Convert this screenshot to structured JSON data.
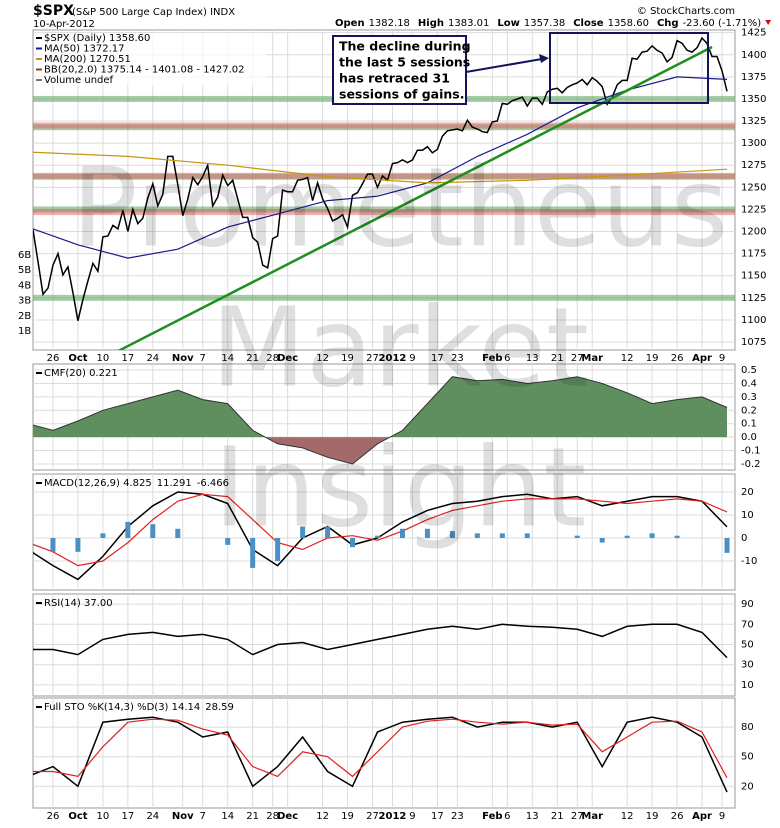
{
  "chart_data": [
    {
      "type": "line",
      "title": "$SPX",
      "subtitle": "(S&P 500 Large Cap Index) INDX",
      "date": "10-Apr-2012",
      "source": "© StockCharts.com",
      "quote": [
        {
          "label": "Open",
          "value": "1382.18"
        },
        {
          "label": "High",
          "value": "1383.01"
        },
        {
          "label": "Low",
          "value": "1357.38"
        },
        {
          "label": "Close",
          "value": "1358.60"
        },
        {
          "label": "Chg",
          "value": "-23.60 (-1.71%)"
        }
      ],
      "annotation": [
        "The decline during",
        "the last 5 sessions",
        "has retraced 31",
        "sessions of gains."
      ],
      "watermark": [
        "Prometheus",
        "Market",
        "Insight"
      ],
      "xlim": [
        -1,
        142
      ],
      "xticks": [
        {
          "value": 5,
          "label": "26"
        },
        {
          "value": 10,
          "label": "Oct"
        },
        {
          "value": 15,
          "label": "10"
        },
        {
          "value": 20,
          "label": "17"
        },
        {
          "value": 25,
          "label": "24"
        },
        {
          "value": 31,
          "label": "Nov"
        },
        {
          "value": 35,
          "label": "7"
        },
        {
          "value": 40,
          "label": "14"
        },
        {
          "value": 45,
          "label": "21"
        },
        {
          "value": 49,
          "label": "28"
        },
        {
          "value": 52,
          "label": "Dec"
        },
        {
          "value": 59,
          "label": "12"
        },
        {
          "value": 64,
          "label": "19"
        },
        {
          "value": 69,
          "label": "27"
        },
        {
          "value": 73,
          "label": "2012"
        },
        {
          "value": 77,
          "label": "9"
        },
        {
          "value": 82,
          "label": "17"
        },
        {
          "value": 86,
          "label": "23"
        },
        {
          "value": 93,
          "label": "Feb"
        },
        {
          "value": 96,
          "label": "6"
        },
        {
          "value": 101,
          "label": "13"
        },
        {
          "value": 106,
          "label": "21"
        },
        {
          "value": 110,
          "label": "27"
        },
        {
          "value": 113,
          "label": "Mar"
        },
        {
          "value": 120,
          "label": "12"
        },
        {
          "value": 125,
          "label": "19"
        },
        {
          "value": 130,
          "label": "26"
        },
        {
          "value": 135,
          "label": "Apr"
        },
        {
          "value": 139,
          "label": "9"
        }
      ],
      "ylim": [
        1066,
        1428
      ],
      "yticks": [
        1075,
        1100,
        1125,
        1150,
        1175,
        1200,
        1225,
        1250,
        1275,
        1300,
        1325,
        1350,
        1375,
        1400,
        1425
      ],
      "vlim": [
        -250000000,
        20800000000
      ],
      "vticks": [
        {
          "value": 1000000000,
          "label": "1B"
        },
        {
          "value": 2000000000,
          "label": "2B"
        },
        {
          "value": 3000000000,
          "label": "3B"
        },
        {
          "value": 4000000000,
          "label": "4B"
        },
        {
          "value": 5000000000,
          "label": "5B"
        },
        {
          "value": 6000000000,
          "label": "6B"
        }
      ],
      "support_levels": [
        1350,
        1318,
        1262,
        1225,
        1125
      ],
      "support_color": "#4c9a4c",
      "resistance_levels": [
        1320,
        1263,
        1222
      ],
      "resistance_color": "#e06060",
      "series": [
        {
          "name": "$SPX (Daily) 1358.60",
          "color": "#000000",
          "values": [
            1204,
            1202,
            1166,
            1129,
            1136,
            1162,
            1175,
            1151,
            1160,
            1131,
            1099,
            1123,
            1144,
            1164,
            1155,
            1194,
            1195,
            1207,
            1203,
            1224,
            1200,
            1225,
            1209,
            1215,
            1238,
            1254,
            1229,
            1242,
            1285,
            1285,
            1253,
            1218,
            1237,
            1261,
            1253,
            1262,
            1275,
            1229,
            1239,
            1264,
            1252,
            1258,
            1237,
            1216,
            1216,
            1193,
            1188,
            1162,
            1159,
            1192,
            1195,
            1247,
            1245,
            1245,
            1258,
            1259,
            1261,
            1235,
            1255,
            1237,
            1226,
            1212,
            1215,
            1219,
            1205,
            1241,
            1244,
            1254,
            1265,
            1265,
            1250,
            1263,
            1258,
            1277,
            1278,
            1281,
            1278,
            1281,
            1292,
            1292,
            1296,
            1289,
            1293,
            1308,
            1314,
            1315,
            1316,
            1314,
            1326,
            1318,
            1316,
            1313,
            1312,
            1324,
            1325,
            1345,
            1344,
            1348,
            1350,
            1352,
            1342,
            1351,
            1351,
            1344,
            1358,
            1361,
            1362,
            1357,
            1363,
            1366,
            1368,
            1372,
            1366,
            1374,
            1370,
            1364,
            1344,
            1352,
            1366,
            1371,
            1371,
            1396,
            1395,
            1403,
            1404,
            1410,
            1405,
            1402,
            1392,
            1397,
            1416,
            1413,
            1405,
            1403,
            1408,
            1419,
            1413,
            1398,
            1398,
            1382,
            1358.6
          ]
        },
        {
          "name": "MA(50) 1372.17",
          "color": "#1a1a8c",
          "x": [
            0,
            10,
            20,
            30,
            40,
            50,
            60,
            70,
            80,
            90,
            100,
            110,
            120,
            130,
            140
          ],
          "values": [
            1205,
            1185,
            1170,
            1180,
            1205,
            1220,
            1235,
            1240,
            1255,
            1285,
            1310,
            1340,
            1360,
            1375,
            1372.17
          ]
        },
        {
          "name": "MA(200) 1270.51",
          "color": "#c8960a",
          "x": [
            0,
            20,
            40,
            60,
            80,
            100,
            120,
            140
          ],
          "values": [
            1290,
            1285,
            1275,
            1262,
            1255,
            1258,
            1264,
            1270.51
          ]
        }
      ],
      "legend_extra": [
        {
          "name": "BB(20,2.0) 1375.14 - 1401.08 - 1427.02",
          "color": "#8b4513"
        },
        {
          "name": "Volume undef",
          "color": "#777777"
        }
      ]
    },
    {
      "type": "area",
      "ylim": [
        -0.245,
        0.545
      ],
      "yticks": [
        -0.2,
        -0.1,
        {
          "value": 0,
          "label": "0.0"
        },
        0.1,
        0.2,
        0.3,
        0.4,
        0.5
      ],
      "series": [
        {
          "name": "CMF(20) 0.221",
          "color": "#5f8f5f",
          "negative_color": "#a46a6a",
          "x": [
            0,
            5,
            10,
            15,
            20,
            25,
            30,
            35,
            40,
            45,
            50,
            55,
            60,
            65,
            70,
            75,
            80,
            85,
            90,
            95,
            100,
            105,
            110,
            115,
            120,
            125,
            130,
            135,
            140
          ],
          "values": [
            0.1,
            0.05,
            0.12,
            0.2,
            0.25,
            0.3,
            0.35,
            0.28,
            0.25,
            0.05,
            -0.05,
            -0.08,
            -0.15,
            -0.2,
            -0.05,
            0.05,
            0.25,
            0.45,
            0.42,
            0.43,
            0.4,
            0.42,
            0.45,
            0.4,
            0.33,
            0.25,
            0.28,
            0.3,
            0.221
          ]
        }
      ]
    },
    {
      "type": "line",
      "ylim": [
        -22.6,
        27.8
      ],
      "yticks": [
        -10,
        0,
        10,
        20
      ],
      "series": [
        {
          "name": "MACD(12,26,9) 4.825",
          "color": "#000000",
          "x": [
            0,
            5,
            10,
            15,
            20,
            25,
            30,
            35,
            40,
            45,
            50,
            55,
            60,
            65,
            70,
            75,
            80,
            85,
            90,
            95,
            100,
            105,
            110,
            115,
            120,
            125,
            130,
            135,
            140
          ],
          "values": [
            -5,
            -12,
            -18,
            -8,
            5,
            14,
            20,
            19,
            15,
            -5,
            -12,
            0,
            5,
            -3,
            0,
            7,
            12,
            15,
            16,
            18,
            19,
            17,
            18,
            14,
            16,
            18,
            18,
            16,
            4.825
          ]
        },
        {
          "name": "11.291",
          "color": "#e02020",
          "x": [
            0,
            5,
            10,
            15,
            20,
            25,
            30,
            35,
            40,
            45,
            50,
            55,
            60,
            65,
            70,
            75,
            80,
            85,
            90,
            95,
            100,
            105,
            110,
            115,
            120,
            125,
            130,
            135,
            140
          ],
          "values": [
            -2,
            -6,
            -12,
            -10,
            -2,
            8,
            16,
            19,
            18,
            8,
            -2,
            -5,
            0,
            1,
            -1,
            3,
            8,
            12,
            14,
            16,
            17,
            17,
            17,
            16,
            15,
            16,
            17,
            16,
            11.291
          ]
        },
        {
          "name": "-6.466",
          "color": "#4a90c4",
          "style": "bar",
          "x": [
            0,
            5,
            10,
            15,
            20,
            25,
            30,
            35,
            40,
            45,
            50,
            55,
            60,
            65,
            70,
            75,
            80,
            85,
            90,
            95,
            100,
            105,
            110,
            115,
            120,
            125,
            130,
            135,
            140
          ],
          "values": [
            -3,
            -6,
            -6,
            2,
            7,
            6,
            4,
            0,
            -3,
            -13,
            -10,
            5,
            5,
            -4,
            1,
            4,
            4,
            3,
            2,
            2,
            2,
            0,
            1,
            -2,
            1,
            2,
            1,
            0,
            -6.466
          ]
        }
      ]
    },
    {
      "type": "line",
      "ylim": [
        -1,
        100
      ],
      "yticks": [
        10,
        30,
        50,
        70,
        90
      ],
      "series": [
        {
          "name": "RSI(14) 37.00",
          "color": "#000000",
          "x": [
            0,
            5,
            10,
            15,
            20,
            25,
            30,
            35,
            40,
            45,
            50,
            55,
            60,
            65,
            70,
            75,
            80,
            85,
            90,
            95,
            100,
            105,
            110,
            115,
            120,
            125,
            130,
            135,
            140
          ],
          "values": [
            45,
            45,
            40,
            55,
            60,
            62,
            58,
            60,
            55,
            40,
            50,
            52,
            45,
            50,
            55,
            60,
            65,
            68,
            65,
            70,
            68,
            67,
            65,
            58,
            68,
            70,
            70,
            62,
            37
          ]
        }
      ]
    },
    {
      "type": "line",
      "ylim": [
        -2,
        109.5
      ],
      "yticks": [
        20,
        50,
        80
      ],
      "series": [
        {
          "name": "Full STO %K(14,3) %D(3) 14.14",
          "color": "#000000",
          "x": [
            0,
            5,
            10,
            15,
            20,
            25,
            30,
            35,
            40,
            45,
            50,
            55,
            60,
            65,
            70,
            75,
            80,
            85,
            90,
            95,
            100,
            105,
            110,
            115,
            120,
            125,
            130,
            135,
            140
          ],
          "values": [
            30,
            40,
            20,
            85,
            88,
            90,
            85,
            70,
            75,
            20,
            40,
            70,
            35,
            20,
            75,
            85,
            88,
            90,
            80,
            85,
            85,
            80,
            85,
            40,
            85,
            90,
            85,
            70,
            14.14
          ]
        },
        {
          "name": "28.59",
          "color": "#e02020",
          "x": [
            0,
            5,
            10,
            15,
            20,
            25,
            30,
            35,
            40,
            45,
            50,
            55,
            60,
            65,
            70,
            75,
            80,
            85,
            90,
            95,
            100,
            105,
            110,
            115,
            120,
            125,
            130,
            135,
            140
          ],
          "values": [
            35,
            35,
            30,
            60,
            85,
            88,
            87,
            78,
            72,
            40,
            30,
            55,
            50,
            30,
            55,
            80,
            86,
            88,
            85,
            83,
            85,
            82,
            83,
            55,
            70,
            85,
            86,
            75,
            28.59
          ]
        }
      ]
    }
  ]
}
